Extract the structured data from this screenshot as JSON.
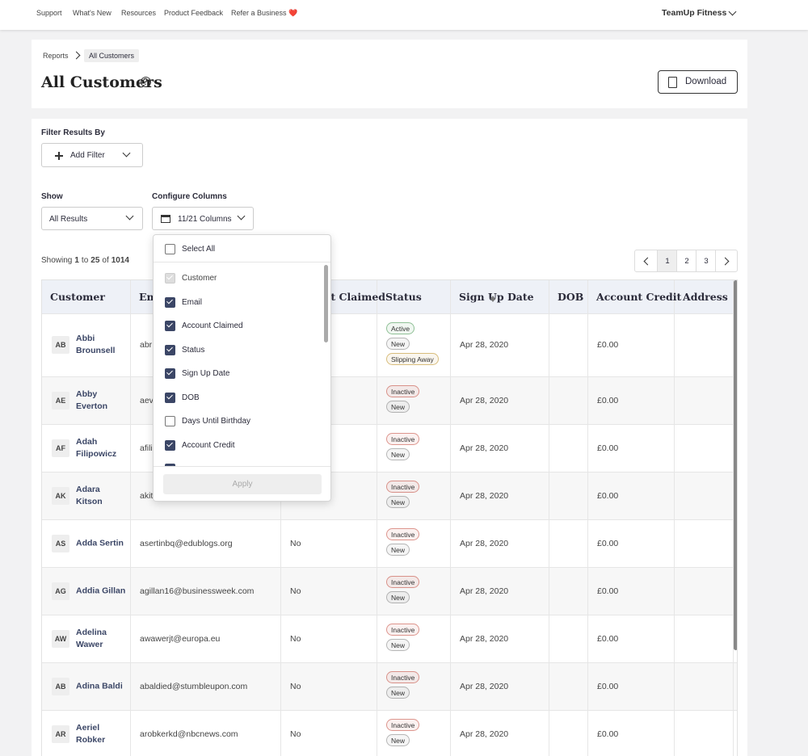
{
  "topnav": {
    "links": [
      "Support",
      "What's New",
      "Resources",
      "Product Feedback",
      "Refer a Business ❤️"
    ],
    "account": "TeamUp Fitness"
  },
  "header": {
    "breadcrumb": [
      "Reports",
      "All Customers"
    ],
    "title": "All Customers",
    "download": "Download"
  },
  "filters": {
    "filter_label": "Filter Results By",
    "add_filter": "Add Filter",
    "show_label": "Show",
    "show_value": "All Results",
    "configure_label": "Configure Columns",
    "configure_value": "11/21 Columns"
  },
  "summary": {
    "showing": "Showing",
    "from": 1,
    "to_word": "to",
    "to": 25,
    "of_word": "of",
    "total": 1014
  },
  "pagination": {
    "pages": [
      1,
      2,
      3
    ],
    "current": 1
  },
  "table": {
    "columns": [
      "Customer",
      "Email",
      "Account Claimed",
      "Status",
      "Sign Up Date",
      "DOB",
      "Account Credit",
      "Address"
    ],
    "rows": [
      {
        "initials": "AB",
        "name": "Abbi Brounsell",
        "email": "abr",
        "claimed": null,
        "status": [
          {
            "label": "Active",
            "color": "#2f8a3c"
          },
          {
            "label": "New",
            "color": "#777777"
          },
          {
            "label": "Slipping Away",
            "color": "#b8860b"
          }
        ],
        "signup": "Apr 28, 2020",
        "credit": "£0.00"
      },
      {
        "initials": "AE",
        "name": "Abby Everton",
        "email": "aev",
        "claimed": null,
        "status": [
          {
            "label": "Inactive",
            "color": "#c0392b"
          },
          {
            "label": "New",
            "color": "#777777"
          }
        ],
        "signup": "Apr 28, 2020",
        "credit": "£0.00"
      },
      {
        "initials": "AF",
        "name": "Adah Filipowicz",
        "email": "afili",
        "claimed": null,
        "status": [
          {
            "label": "Inactive",
            "color": "#c0392b"
          },
          {
            "label": "New",
            "color": "#777777"
          }
        ],
        "signup": "Apr 28, 2020",
        "credit": "£0.00"
      },
      {
        "initials": "AK",
        "name": "Adara Kitson",
        "email": "akit",
        "claimed": null,
        "status": [
          {
            "label": "Inactive",
            "color": "#c0392b"
          },
          {
            "label": "New",
            "color": "#777777"
          }
        ],
        "signup": "Apr 28, 2020",
        "credit": "£0.00"
      },
      {
        "initials": "AS",
        "name": "Adda Sertin",
        "email": "asertinbq@edublogs.org",
        "claimed": "No",
        "status": [
          {
            "label": "Inactive",
            "color": "#c0392b"
          },
          {
            "label": "New",
            "color": "#777777"
          }
        ],
        "signup": "Apr 28, 2020",
        "credit": "£0.00"
      },
      {
        "initials": "AG",
        "name": "Addia Gillan",
        "email": "agillan16@businessweek.com",
        "claimed": "No",
        "status": [
          {
            "label": "Inactive",
            "color": "#c0392b"
          },
          {
            "label": "New",
            "color": "#777777"
          }
        ],
        "signup": "Apr 28, 2020",
        "credit": "£0.00"
      },
      {
        "initials": "AW",
        "name": "Adelina Wawer",
        "email": "awawerjt@europa.eu",
        "claimed": "No",
        "status": [
          {
            "label": "Inactive",
            "color": "#c0392b"
          },
          {
            "label": "New",
            "color": "#777777"
          }
        ],
        "signup": "Apr 28, 2020",
        "credit": "£0.00"
      },
      {
        "initials": "AB",
        "name": "Adina Baldi",
        "email": "abaldied@stumbleupon.com",
        "claimed": "No",
        "status": [
          {
            "label": "Inactive",
            "color": "#c0392b"
          },
          {
            "label": "New",
            "color": "#777777"
          }
        ],
        "signup": "Apr 28, 2020",
        "credit": "£0.00"
      },
      {
        "initials": "AR",
        "name": "Aeriel Robker",
        "email": "arobkerkd@nbcnews.com",
        "claimed": "No",
        "status": [
          {
            "label": "Inactive",
            "color": "#c0392b"
          },
          {
            "label": "New",
            "color": "#777777"
          }
        ],
        "signup": "Apr 28, 2020",
        "credit": "£0.00"
      }
    ]
  },
  "column_menu": {
    "select_all": "Select All",
    "items": [
      {
        "label": "Customer",
        "checked": true,
        "disabled": true
      },
      {
        "label": "Email",
        "checked": true,
        "disabled": false
      },
      {
        "label": "Account Claimed",
        "checked": true,
        "disabled": false
      },
      {
        "label": "Status",
        "checked": true,
        "disabled": false
      },
      {
        "label": "Sign Up Date",
        "checked": true,
        "disabled": false
      },
      {
        "label": "DOB",
        "checked": true,
        "disabled": false
      },
      {
        "label": "Days Until Birthday",
        "checked": false,
        "disabled": false
      },
      {
        "label": "Account Credit",
        "checked": true,
        "disabled": false
      }
    ],
    "apply": "Apply"
  }
}
